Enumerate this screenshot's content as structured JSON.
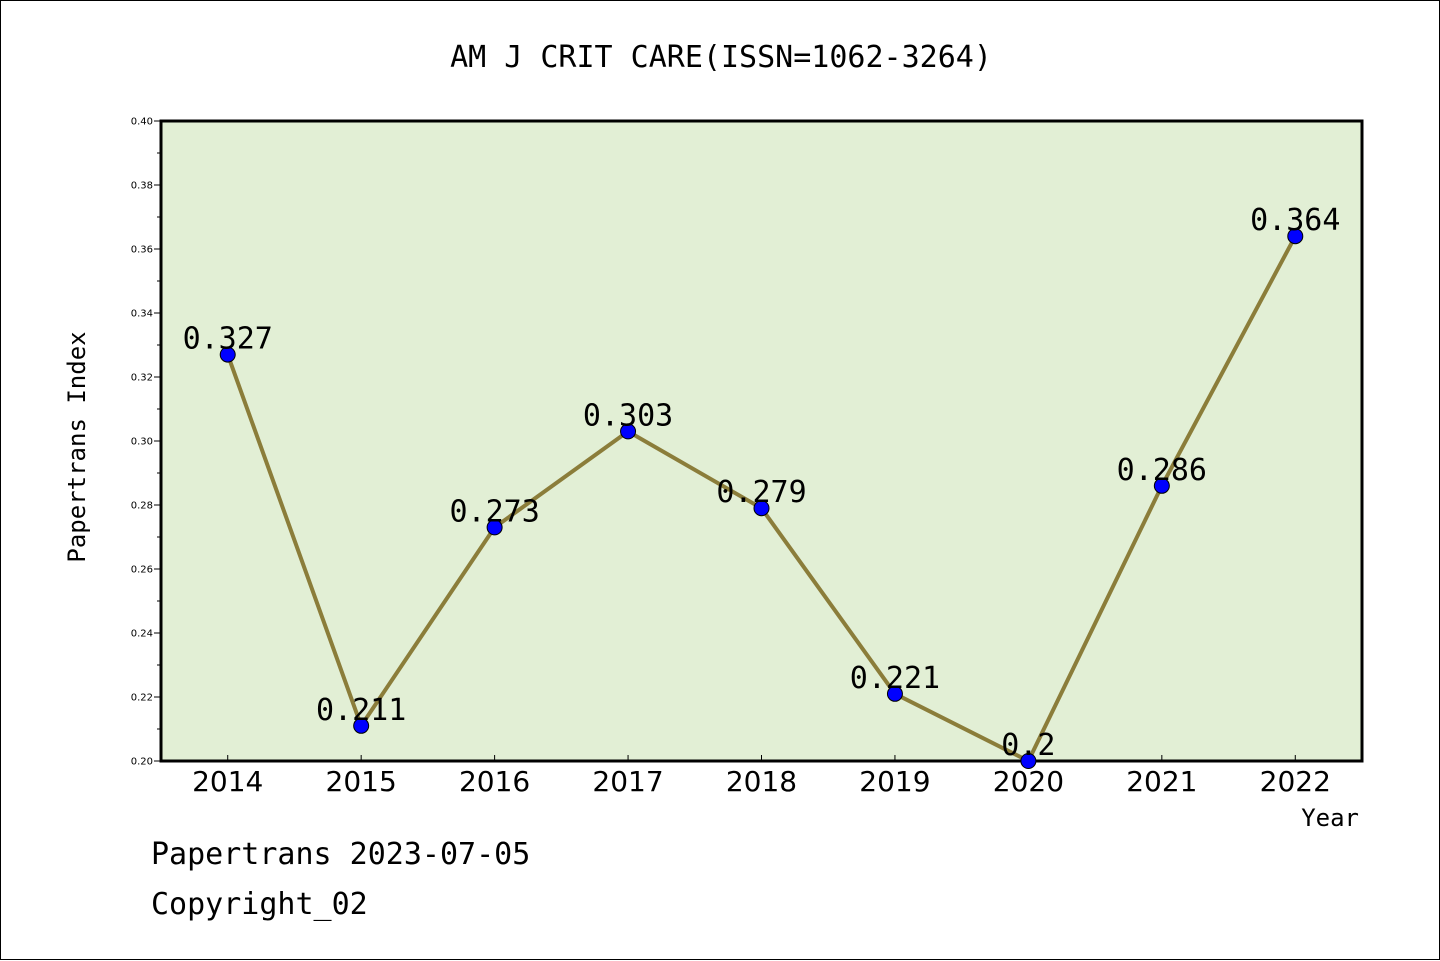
{
  "footer": {
    "line1": "Papertrans 2023-07-05",
    "line2": "Copyright_02"
  },
  "colors": {
    "plot_background": "#e2efd5",
    "line": "#8b7d3a",
    "marker": "#0000ff"
  },
  "chart_data": {
    "type": "line",
    "title": "AM J CRIT CARE(ISSN=1062-3264)",
    "xlabel": "Year",
    "ylabel": "Papertrans Index",
    "categories": [
      "2014",
      "2015",
      "2016",
      "2017",
      "2018",
      "2019",
      "2020",
      "2021",
      "2022"
    ],
    "series": [
      {
        "values": [
          0.327,
          0.211,
          0.273,
          0.303,
          0.279,
          0.221,
          0.2,
          0.286,
          0.364
        ],
        "labels": [
          "0.327",
          "0.211",
          "0.273",
          "0.303",
          "0.279",
          "0.221",
          "0.2",
          "0.286",
          "0.364"
        ]
      }
    ],
    "ylim": [
      0.2,
      0.4
    ],
    "yticks": [
      "0.20",
      "0.22",
      "0.24",
      "0.26",
      "0.28",
      "0.30",
      "0.32",
      "0.34",
      "0.36",
      "0.38",
      "0.40"
    ],
    "grid": false,
    "legend": "none"
  }
}
